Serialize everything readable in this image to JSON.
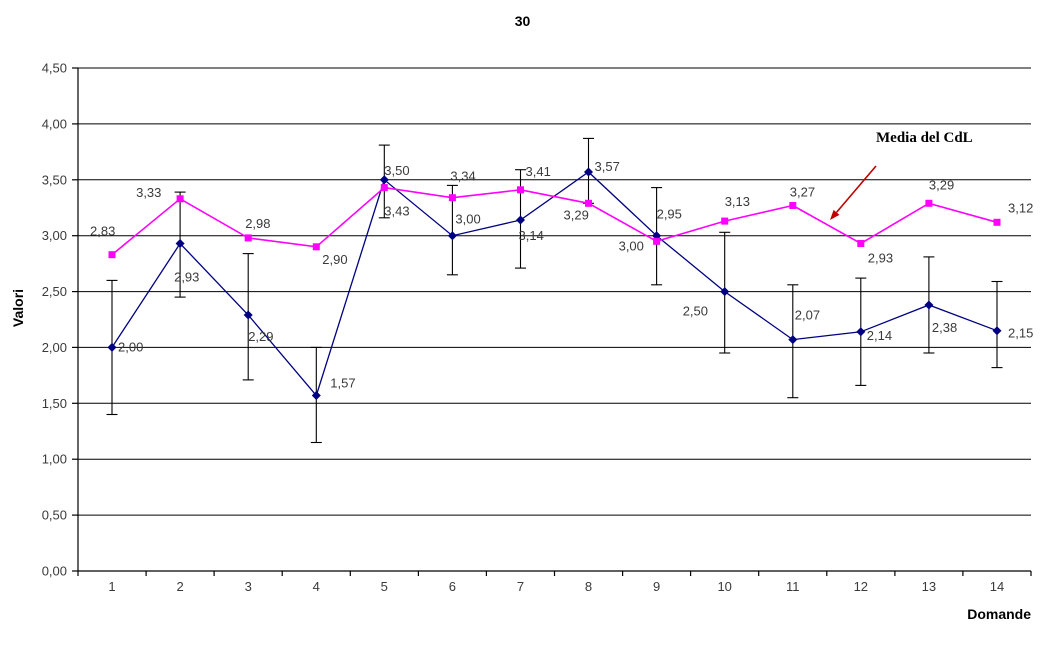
{
  "chart_data": {
    "type": "line",
    "title": "30",
    "xlabel": "Domande",
    "ylabel": "Valori",
    "ylim": [
      0,
      4.5
    ],
    "ytick_step": 0.5,
    "ytick_labels": [
      "0,00",
      "0,50",
      "1,00",
      "1,50",
      "2,00",
      "2,50",
      "3,00",
      "3,50",
      "4,00",
      "4,50"
    ],
    "categories": [
      "1",
      "2",
      "3",
      "4",
      "5",
      "6",
      "7",
      "8",
      "9",
      "10",
      "11",
      "12",
      "13",
      "14"
    ],
    "grid": true,
    "legend": "none",
    "annotation": {
      "text": "Media del CdL",
      "arrow_color": "#c00000"
    },
    "series": [
      {
        "id": "course-30",
        "name": "30",
        "color": "#000080",
        "marker": "diamond",
        "values": [
          2.0,
          2.93,
          2.29,
          1.57,
          3.5,
          3.0,
          3.14,
          3.57,
          3.0,
          2.5,
          2.07,
          2.14,
          2.38,
          2.15
        ],
        "labels": [
          "2,00",
          "2,93",
          "2,29",
          "1,57",
          "3,50",
          "3,00",
          "3,14",
          "3,57",
          "3,00",
          "2,50",
          "2,07",
          "2,14",
          "2,38",
          "2,15"
        ],
        "error_low": [
          1.4,
          2.45,
          1.71,
          1.15,
          3.16,
          2.65,
          2.71,
          3.29,
          2.56,
          1.95,
          1.55,
          1.66,
          1.95,
          1.82
        ],
        "error_high": [
          2.6,
          3.39,
          2.84,
          2.0,
          3.81,
          3.45,
          3.59,
          3.87,
          3.43,
          3.03,
          2.56,
          2.62,
          2.81,
          2.59
        ],
        "label_offsets": [
          [
            6,
            4
          ],
          [
            -6,
            38
          ],
          [
            0,
            26
          ],
          [
            14,
            -8
          ],
          [
            0,
            -5
          ],
          [
            3,
            -12
          ],
          [
            -2,
            20
          ],
          [
            6,
            -1
          ],
          [
            -38,
            15
          ],
          [
            -42,
            24
          ],
          [
            2,
            -20
          ],
          [
            6,
            8
          ],
          [
            3,
            27
          ],
          [
            11,
            7
          ]
        ]
      },
      {
        "id": "media-del-cdl",
        "name": "Media del CdL",
        "color": "#ff00ff",
        "marker": "square",
        "values": [
          2.83,
          3.33,
          2.98,
          2.9,
          3.43,
          3.34,
          3.41,
          3.29,
          2.95,
          3.13,
          3.27,
          2.93,
          3.29,
          3.12
        ],
        "labels": [
          "2,83",
          "3,33",
          "2,98",
          "2,90",
          "3,43",
          "3,34",
          "3,41",
          "3,29",
          "2,95",
          "3,13",
          "3,27",
          "2,93",
          "3,29",
          "3,12"
        ],
        "label_offsets": [
          [
            -22,
            -19
          ],
          [
            -44,
            -2
          ],
          [
            -3,
            -10
          ],
          [
            6,
            17
          ],
          [
            0,
            28
          ],
          [
            -2,
            -17
          ],
          [
            5,
            -14
          ],
          [
            -25,
            16
          ],
          [
            0,
            -23
          ],
          [
            0,
            -15
          ],
          [
            -3,
            -9
          ],
          [
            7,
            19
          ],
          [
            0,
            -14
          ],
          [
            11,
            -10
          ]
        ]
      }
    ]
  }
}
